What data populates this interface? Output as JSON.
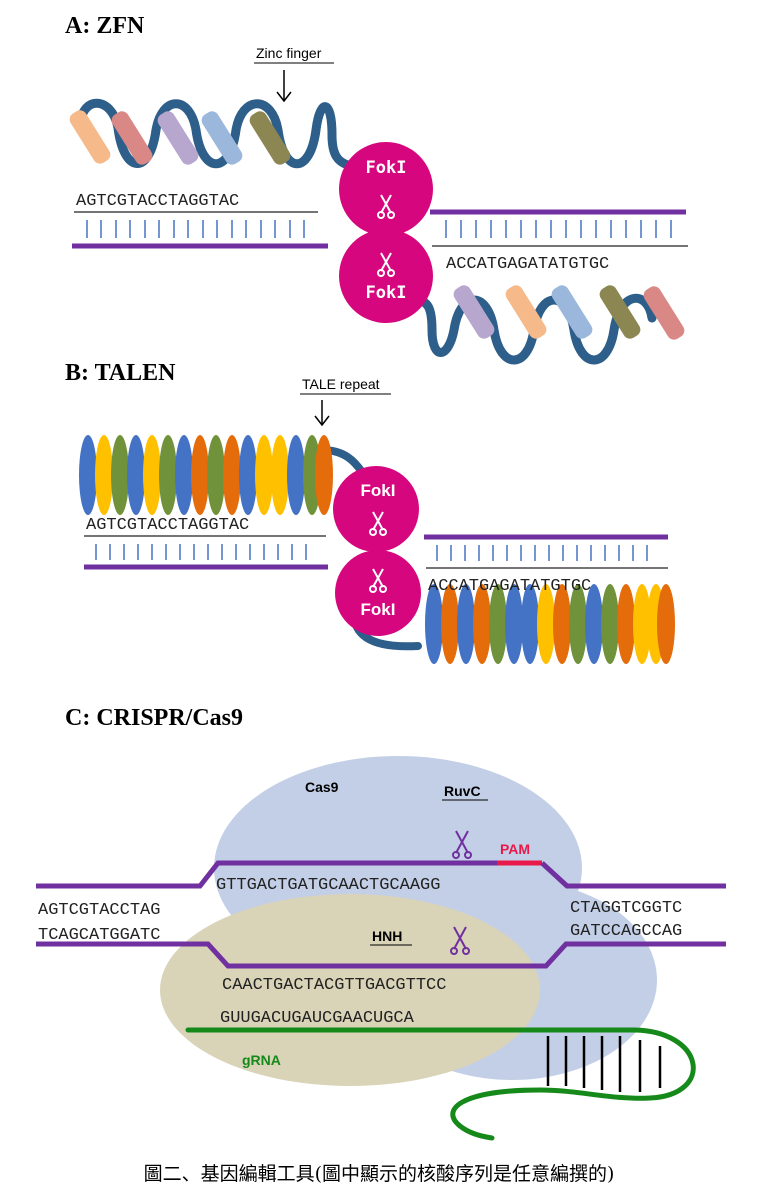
{
  "sections": {
    "zfn": {
      "title": "A: ZFN",
      "pointer_label": "Zinc finger",
      "top_seq": "AGTCGTACCTAGGTAC",
      "bottom_seq": "ACCATGAGATATGTGC",
      "fok_top": "FokI",
      "fok_bottom": "FokI"
    },
    "talen": {
      "title": "B: TALEN",
      "pointer_label": "TALE repeat",
      "top_seq": "AGTCGTACCTAGGTAC",
      "bottom_seq": "ACCATGAGATATGTGC",
      "fok_top": "FokI",
      "fok_bottom": "FokI"
    },
    "crispr": {
      "title": "C: CRISPR/Cas9",
      "cas9_label": "Cas9",
      "ruvc_label": "RuvC",
      "hnh_label": "HNH",
      "pam_label": "PAM",
      "grna_label": "gRNA",
      "target_strand": "GTTGACTGATGCAACTGCAAGG",
      "left_top": "AGTCGTACCTAG",
      "left_bottom": "TCAGCATGGATC",
      "right_top": "CTAGGTCGGTC",
      "right_bottom": "GATCCAGCCAG",
      "complement_strand": "CAACTGACTACGTTGACGTTCC",
      "grna_seq": "GUUGACUGAUCGAACUGCA"
    }
  },
  "caption": "圖二、基因編輯工具(圖中顯示的核酸序列是任意編撰的)",
  "colors": {
    "dna_purple": "#7030a0",
    "fok_magenta": "#d6077e",
    "linker_blue": "#2e5f8a",
    "pam_red": "#e8194a",
    "grna_green": "#15891a",
    "cas9_blue": "#c3cfe6",
    "cas9_tan": "#d9d3b8",
    "finger_colors": [
      "#f6b98a",
      "#d98885",
      "#b7a7cf",
      "#9bb8dc",
      "#8c8752"
    ],
    "tale_colors": [
      "#4472c4",
      "#ffc000",
      "#70923a",
      "#e46c0a"
    ]
  },
  "icons": [
    "scissors-icon",
    "down-arrow-icon"
  ]
}
